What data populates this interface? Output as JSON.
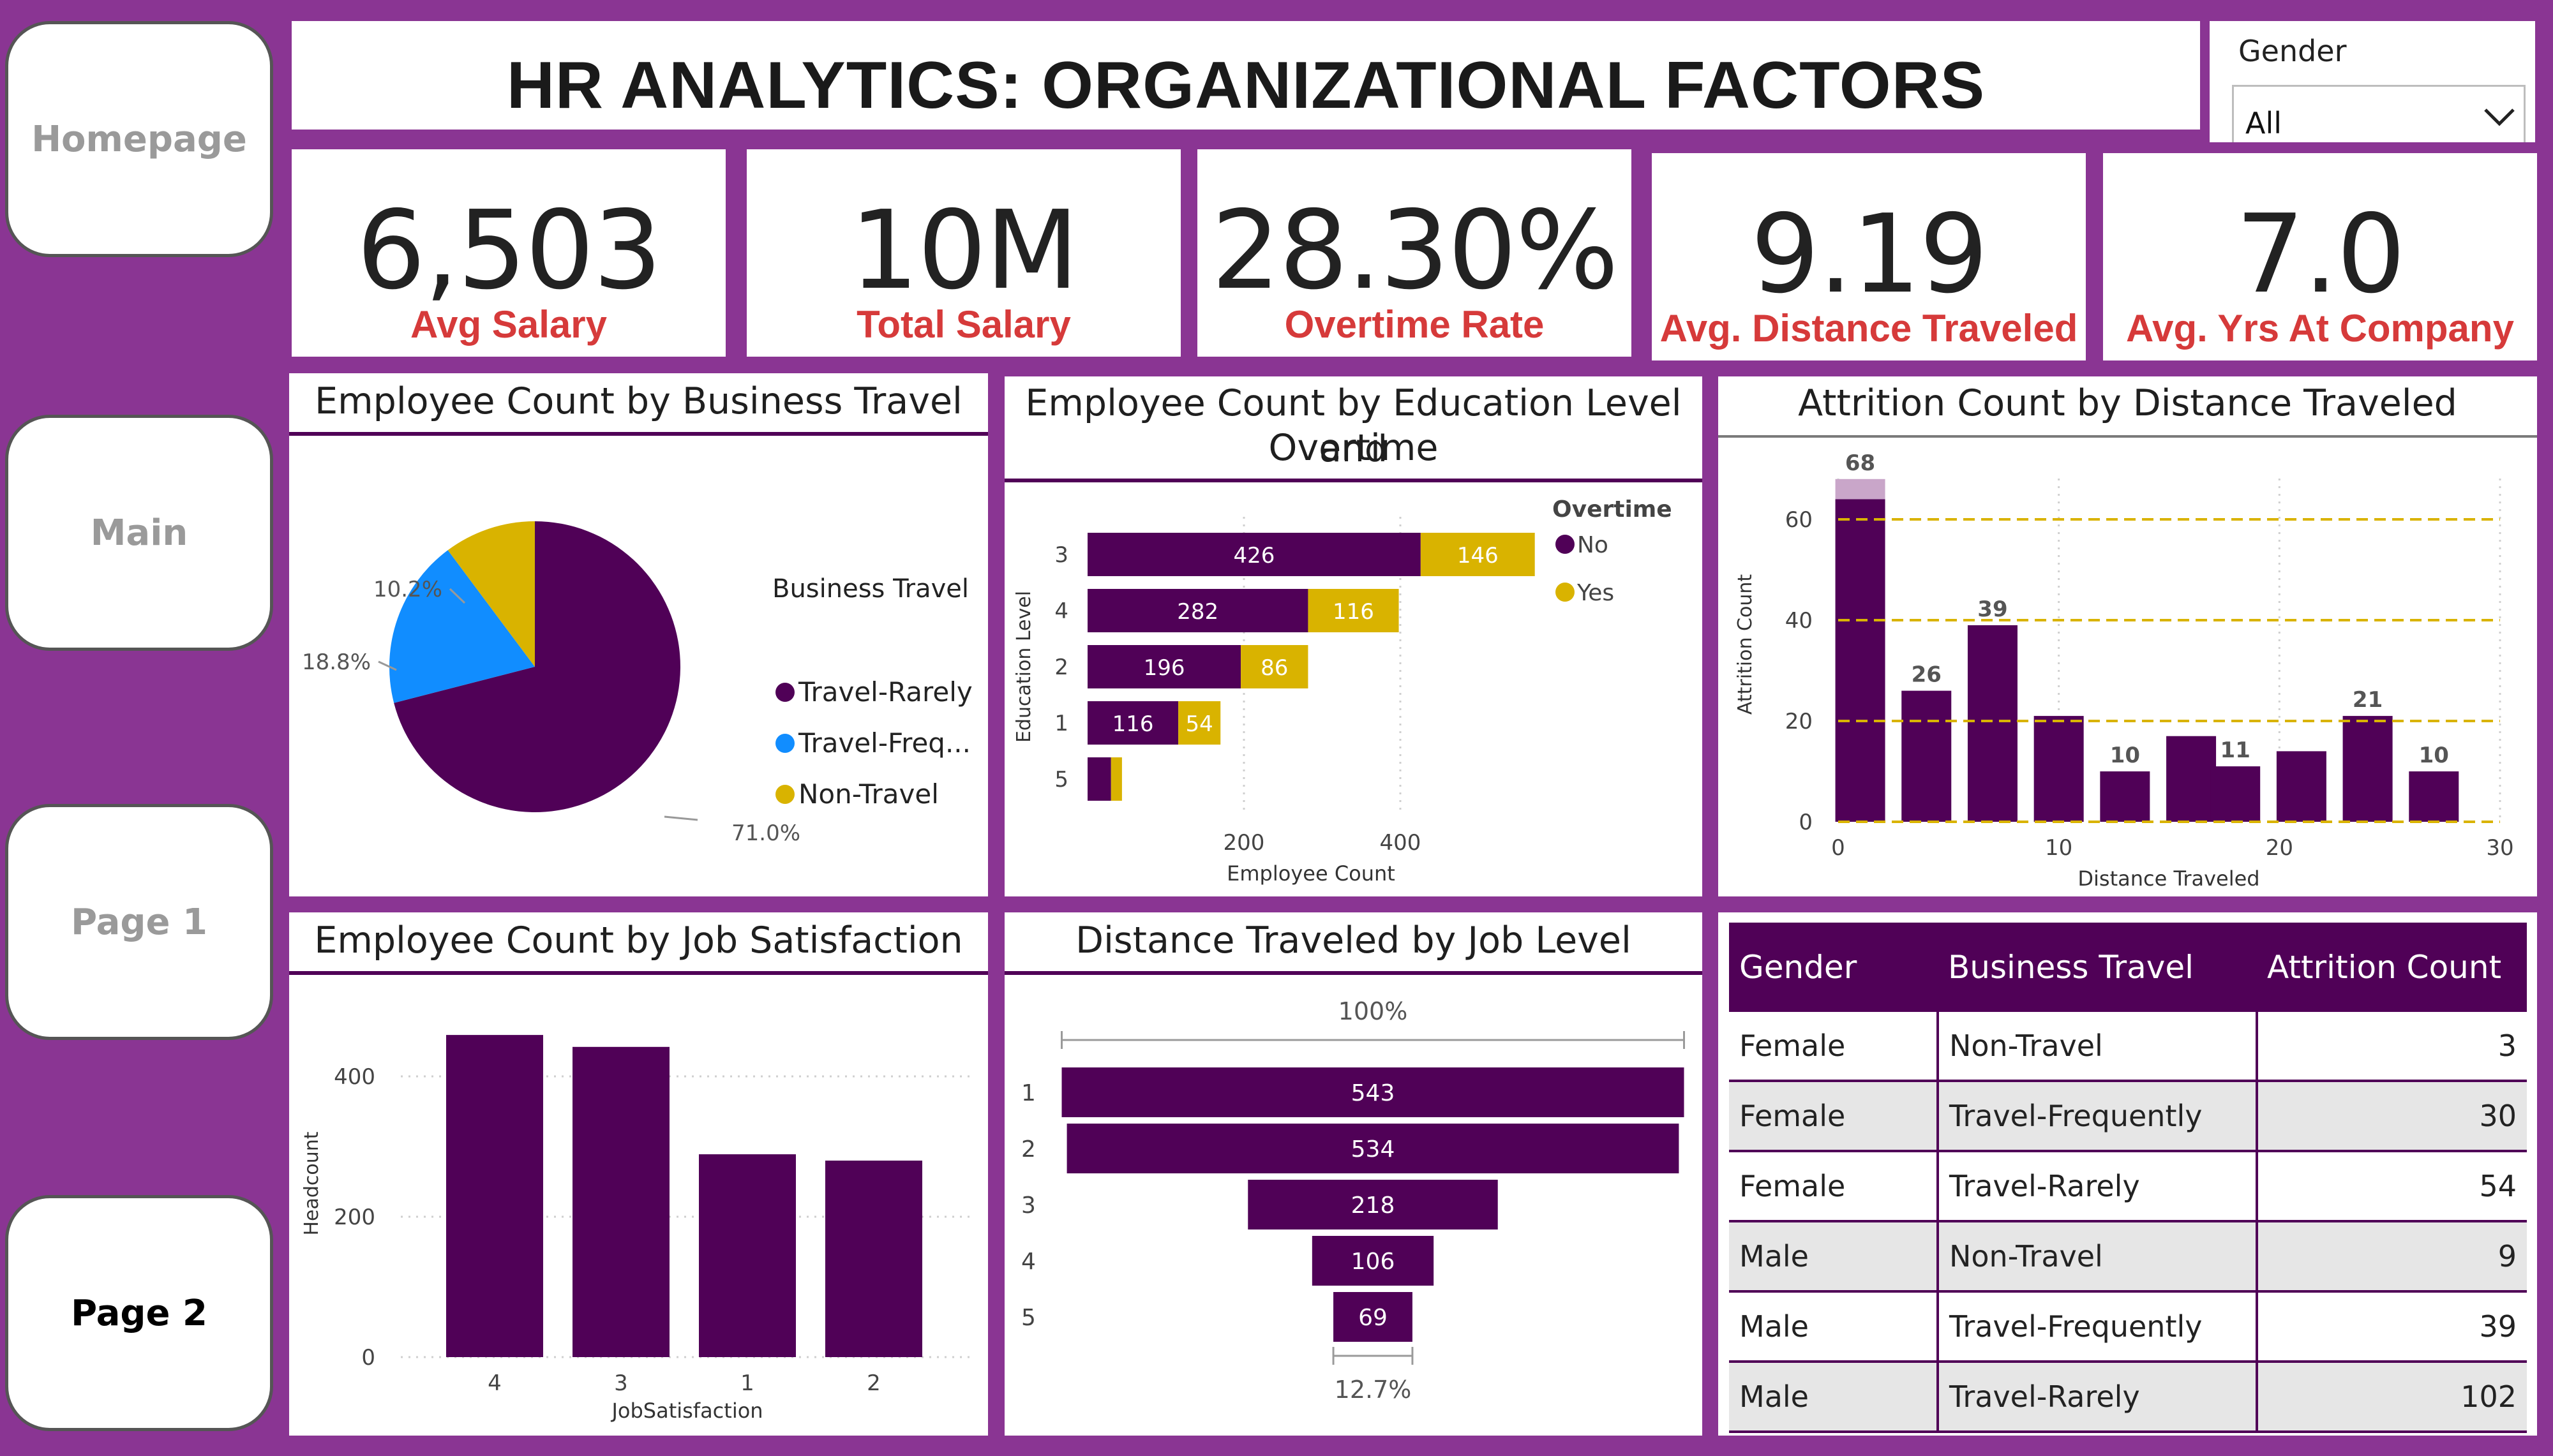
{
  "nav": {
    "buttons": [
      {
        "label": "Homepage",
        "active": false
      },
      {
        "label": "Main",
        "active": false
      },
      {
        "label": "Page 1",
        "active": false
      },
      {
        "label": "Page 2",
        "active": true
      }
    ]
  },
  "header": {
    "title": "HR ANALYTICS: ORGANIZATIONAL FACTORS"
  },
  "filter": {
    "label": "Gender",
    "value": "All"
  },
  "kpis": [
    {
      "value": "6,503",
      "label": "Avg Salary"
    },
    {
      "value": "10M",
      "label": "Total Salary"
    },
    {
      "value": "28.30%",
      "label": "Overtime Rate"
    },
    {
      "value": "9.19",
      "label": "Avg. Distance Traveled"
    },
    {
      "value": "7.0",
      "label": "Avg. Yrs At Company"
    }
  ],
  "colors": {
    "purple": "#500157",
    "blue": "#118dff",
    "gold": "#d9b300",
    "bg": "#8a3593",
    "kpi_label": "#d63a3a"
  },
  "visuals": {
    "business_travel": {
      "title": "Employee Count by Business Travel",
      "legend_title": "Business Travel"
    },
    "education_overtime": {
      "title_line1": "Employee Count by Education Level and",
      "title_line2": "Overtime",
      "legend_title": "Overtime"
    },
    "attrition_distance": {
      "title": "Attrition Count by Distance Traveled"
    },
    "job_satisfaction": {
      "title": "Employee Count by Job Satisfaction"
    },
    "distance_joblevel": {
      "title": "Distance Traveled by Job Level",
      "top_label": "100%",
      "bottom_label": "12.7%"
    },
    "attrition_table": {
      "columns": [
        "Gender",
        "Business Travel",
        "Attrition Count"
      ],
      "rows": [
        [
          "Female",
          "Non-Travel",
          "3"
        ],
        [
          "Female",
          "Travel-Frequently",
          "30"
        ],
        [
          "Female",
          "Travel-Rarely",
          "54"
        ],
        [
          "Male",
          "Non-Travel",
          "9"
        ],
        [
          "Male",
          "Travel-Frequently",
          "39"
        ],
        [
          "Male",
          "Travel-Rarely",
          "102"
        ]
      ]
    }
  },
  "chart_data": [
    {
      "id": "business_travel",
      "type": "pie",
      "title": "Employee Count by Business Travel",
      "legend_title": "Business Travel",
      "legend": "right",
      "slices": [
        {
          "name": "Travel-Rarely",
          "legend_label": "Travel-Rarely",
          "value": 71.0,
          "label": "71.0%",
          "color": "#500157"
        },
        {
          "name": "Travel-Frequently",
          "legend_label": "Travel-Freq...",
          "value": 18.8,
          "label": "18.8%",
          "color": "#118dff"
        },
        {
          "name": "Non-Travel",
          "legend_label": "Non-Travel",
          "value": 10.2,
          "label": "10.2%",
          "color": "#d9b300"
        }
      ]
    },
    {
      "id": "education_overtime",
      "type": "bar",
      "orientation": "horizontal",
      "stacked": true,
      "title": "Employee Count by Education Level and Overtime",
      "xlabel": "Employee Count",
      "ylabel": "Education Level",
      "categories": [
        "3",
        "4",
        "2",
        "1",
        "5"
      ],
      "series": [
        {
          "name": "No",
          "color": "#500157",
          "values": [
            426,
            282,
            196,
            116,
            30
          ],
          "labels": [
            "426",
            "282",
            "196",
            "116",
            ""
          ]
        },
        {
          "name": "Yes",
          "color": "#d9b300",
          "values": [
            146,
            116,
            86,
            54,
            14
          ],
          "labels": [
            "146",
            "116",
            "86",
            "54",
            ""
          ]
        }
      ],
      "xticks": [
        200,
        400
      ],
      "xlim": [
        0,
        600
      ],
      "legend": "top-right"
    },
    {
      "id": "attrition_distance",
      "type": "bar",
      "title": "Attrition Count by Distance Traveled",
      "xlabel": "Distance Traveled",
      "ylabel": "Attrition Count",
      "x": [
        1,
        4,
        7,
        10,
        13,
        16,
        18,
        21,
        24,
        27
      ],
      "values": [
        68,
        26,
        39,
        21,
        10,
        17,
        11,
        14,
        21,
        10
      ],
      "data_labels": [
        "68",
        "26",
        "39",
        "",
        "10",
        "",
        "11",
        "",
        "21",
        "10"
      ],
      "xticks": [
        0,
        10,
        20,
        30
      ],
      "yticks": [
        0,
        20,
        40,
        60
      ],
      "xlim": [
        0,
        30
      ],
      "ylim": [
        0,
        68
      ],
      "reference_lines": [
        20,
        40,
        60
      ]
    },
    {
      "id": "job_satisfaction",
      "type": "bar",
      "title": "Employee Count by Job Satisfaction",
      "xlabel": "JobSatisfaction",
      "ylabel": "Headcount",
      "categories": [
        "4",
        "3",
        "1",
        "2"
      ],
      "values": [
        459,
        442,
        289,
        280
      ],
      "yticks": [
        0,
        200,
        400
      ],
      "ylim": [
        0,
        480
      ]
    },
    {
      "id": "distance_joblevel",
      "type": "bar",
      "subtype": "funnel",
      "title": "Distance Traveled by Job Level",
      "categories": [
        "1",
        "2",
        "3",
        "4",
        "5"
      ],
      "values": [
        543,
        534,
        218,
        106,
        69
      ],
      "top_label": "100%",
      "bottom_label": "12.7%"
    }
  ]
}
